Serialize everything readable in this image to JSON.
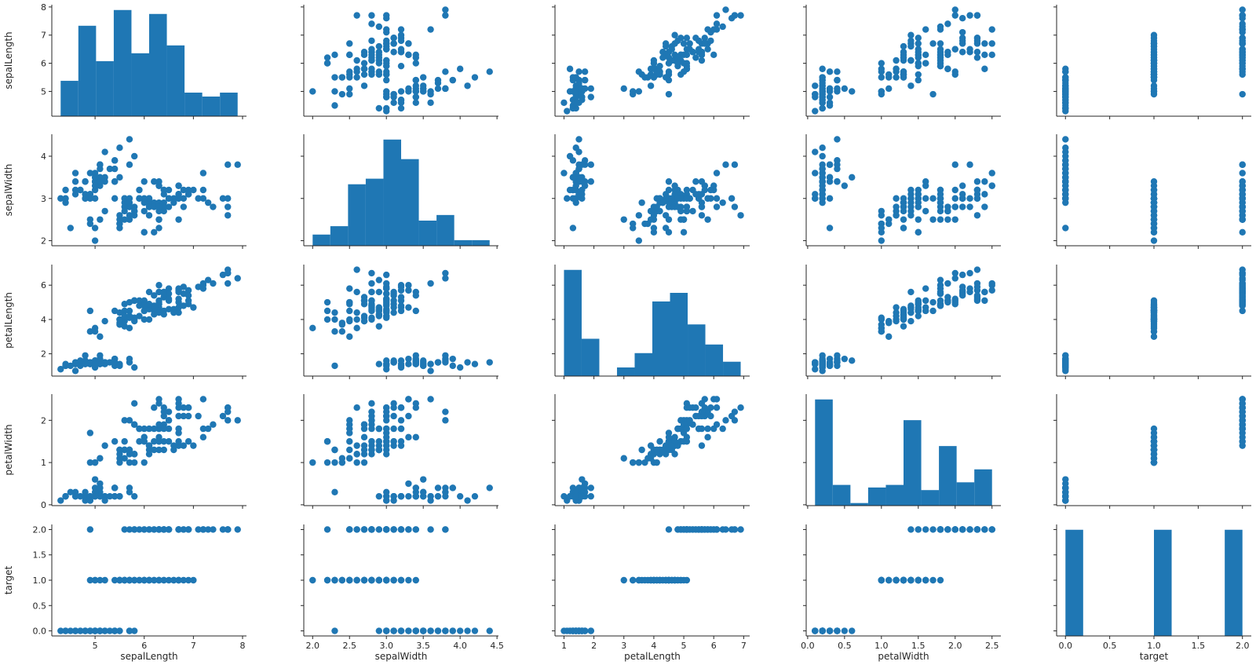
{
  "figure": {
    "variables": [
      "sepalLength",
      "sepalWidth",
      "petalLength",
      "petalWidth",
      "target"
    ],
    "mark_color": "#1f77b4",
    "axis_color": "#262626"
  },
  "chart_data": {
    "type": "scatter",
    "layout": "pair-grid",
    "diagonal": "histogram",
    "off_diagonal": "scatter",
    "title": "",
    "grid": false,
    "legend": "none",
    "axes": {
      "sepalLength": {
        "label": "sepalLength",
        "lim": [
          4.12,
          8.08
        ],
        "ticks": [
          5,
          6,
          7,
          8
        ],
        "tick_labels": [
          "5",
          "6",
          "7",
          "8"
        ]
      },
      "sepalWidth": {
        "label": "sepalWidth",
        "lim": [
          1.88,
          4.52
        ],
        "ticks": [
          2.0,
          2.5,
          3.0,
          3.5,
          4.0,
          4.5
        ],
        "tick_labels": [
          "2.0",
          "2.5",
          "3.0",
          "3.5",
          "4.0",
          "4.5"
        ],
        "row_ticks": [
          2,
          3,
          4
        ],
        "row_tick_labels": [
          "2",
          "3",
          "4"
        ]
      },
      "petalLength": {
        "label": "petalLength",
        "lim": [
          0.7,
          7.2
        ],
        "ticks": [
          1,
          2,
          3,
          4,
          5,
          6,
          7
        ],
        "tick_labels": [
          "1",
          "2",
          "3",
          "4",
          "5",
          "6",
          "7"
        ],
        "row_ticks": [
          2,
          4,
          6
        ],
        "row_tick_labels": [
          "2",
          "4",
          "6"
        ]
      },
      "petalWidth": {
        "label": "petalWidth",
        "lim": [
          -0.02,
          2.62
        ],
        "ticks": [
          0.0,
          0.5,
          1.0,
          1.5,
          2.0,
          2.5
        ],
        "tick_labels": [
          "0.0",
          "0.5",
          "1.0",
          "1.5",
          "2.0",
          "2.5"
        ],
        "row_ticks": [
          0,
          1,
          2
        ],
        "row_tick_labels": [
          "0",
          "1",
          "2"
        ]
      },
      "target": {
        "label": "target",
        "lim": [
          -0.1,
          2.1
        ],
        "ticks": [
          0.0,
          0.5,
          1.0,
          1.5,
          2.0
        ],
        "tick_labels": [
          "0.0",
          "0.5",
          "1.0",
          "1.5",
          "2.0"
        ]
      }
    },
    "histograms": {
      "sepalLength": {
        "edges": [
          4.3,
          4.66,
          5.02,
          5.38,
          5.74,
          6.1,
          6.46,
          6.82,
          7.18,
          7.54,
          7.9
        ],
        "counts": [
          9,
          23,
          14,
          27,
          16,
          26,
          18,
          6,
          5,
          6
        ]
      },
      "sepalWidth": {
        "edges": [
          2.0,
          2.24,
          2.48,
          2.72,
          2.96,
          3.2,
          3.44,
          3.68,
          3.92,
          4.16,
          4.4
        ],
        "counts": [
          4,
          7,
          22,
          24,
          38,
          31,
          9,
          11,
          2,
          2
        ]
      },
      "petalLength": {
        "edges": [
          1.0,
          1.59,
          2.18,
          2.77,
          3.36,
          3.95,
          4.54,
          5.13,
          5.72,
          6.31,
          6.9
        ],
        "counts": [
          37,
          13,
          0,
          3,
          8,
          26,
          29,
          18,
          11,
          5
        ]
      },
      "petalWidth": {
        "edges": [
          0.1,
          0.34,
          0.58,
          0.82,
          1.06,
          1.3,
          1.54,
          1.78,
          2.02,
          2.26,
          2.5
        ],
        "counts": [
          41,
          8,
          1,
          7,
          8,
          33,
          6,
          23,
          9,
          14
        ]
      },
      "target": {
        "edges": [
          0.0,
          0.2,
          0.4,
          0.6,
          0.8,
          1.0,
          1.2,
          1.4,
          1.6,
          1.8,
          2.0
        ],
        "counts": [
          50,
          0,
          0,
          0,
          0,
          50,
          0,
          0,
          0,
          50
        ]
      }
    },
    "points": {
      "sepalLength": [
        5.1,
        4.9,
        4.7,
        4.6,
        5.0,
        5.4,
        4.6,
        5.0,
        4.4,
        4.9,
        5.4,
        4.8,
        4.8,
        4.3,
        5.8,
        5.7,
        5.4,
        5.1,
        5.7,
        5.1,
        5.4,
        5.1,
        4.6,
        5.1,
        4.8,
        5.0,
        5.0,
        5.2,
        5.2,
        4.7,
        4.8,
        5.4,
        5.2,
        5.5,
        4.9,
        5.0,
        5.5,
        4.9,
        4.4,
        5.1,
        5.0,
        4.5,
        4.4,
        5.0,
        5.1,
        4.8,
        5.1,
        4.6,
        5.3,
        5.0,
        7.0,
        6.4,
        6.9,
        5.5,
        6.5,
        5.7,
        6.3,
        4.9,
        6.6,
        5.2,
        5.0,
        5.9,
        6.0,
        6.1,
        5.6,
        6.7,
        5.6,
        5.8,
        6.2,
        5.6,
        5.9,
        6.1,
        6.3,
        6.1,
        6.4,
        6.6,
        6.8,
        6.7,
        6.0,
        5.7,
        5.5,
        5.5,
        5.8,
        6.0,
        5.4,
        6.0,
        6.7,
        6.3,
        5.6,
        5.5,
        5.5,
        6.1,
        5.8,
        5.0,
        5.6,
        5.7,
        5.7,
        6.2,
        5.1,
        5.7,
        6.3,
        5.8,
        7.1,
        6.3,
        6.5,
        7.6,
        4.9,
        7.3,
        6.7,
        7.2,
        6.5,
        6.4,
        6.8,
        5.7,
        5.8,
        6.4,
        6.5,
        7.7,
        7.7,
        6.0,
        6.9,
        5.6,
        7.7,
        6.3,
        6.7,
        7.2,
        6.2,
        6.1,
        6.4,
        7.2,
        7.4,
        7.9,
        6.4,
        6.3,
        6.1,
        7.7,
        6.3,
        6.4,
        6.0,
        6.9,
        6.7,
        6.9,
        5.8,
        6.8,
        6.7,
        6.7,
        6.3,
        6.5,
        6.2,
        5.9
      ],
      "sepalWidth": [
        3.5,
        3.0,
        3.2,
        3.1,
        3.6,
        3.9,
        3.4,
        3.4,
        2.9,
        3.1,
        3.7,
        3.4,
        3.0,
        3.0,
        4.0,
        4.4,
        3.9,
        3.5,
        3.8,
        3.8,
        3.4,
        3.7,
        3.6,
        3.3,
        3.4,
        3.0,
        3.4,
        3.5,
        3.4,
        3.2,
        3.1,
        3.4,
        4.1,
        4.2,
        3.1,
        3.2,
        3.5,
        3.6,
        3.0,
        3.4,
        3.5,
        2.3,
        3.2,
        3.5,
        3.8,
        3.0,
        3.8,
        3.2,
        3.7,
        3.3,
        3.2,
        3.2,
        3.1,
        2.3,
        2.8,
        2.8,
        3.3,
        2.4,
        2.9,
        2.7,
        2.0,
        3.0,
        2.2,
        2.9,
        2.9,
        3.1,
        3.0,
        2.7,
        2.2,
        2.5,
        3.2,
        2.8,
        2.5,
        2.8,
        2.9,
        3.0,
        2.8,
        3.0,
        2.9,
        2.6,
        2.4,
        2.4,
        2.7,
        2.7,
        3.0,
        3.4,
        3.1,
        2.3,
        3.0,
        2.5,
        2.6,
        3.0,
        2.6,
        2.3,
        2.7,
        3.0,
        2.9,
        2.9,
        2.5,
        2.8,
        3.3,
        2.7,
        3.0,
        2.9,
        3.0,
        3.0,
        2.5,
        2.9,
        2.5,
        3.6,
        3.2,
        2.7,
        3.0,
        2.5,
        2.8,
        3.2,
        3.0,
        3.8,
        2.6,
        2.2,
        3.2,
        2.8,
        2.8,
        2.7,
        3.3,
        3.2,
        2.8,
        3.0,
        2.8,
        3.0,
        2.8,
        3.8,
        2.8,
        2.8,
        2.6,
        3.0,
        3.4,
        3.1,
        3.0,
        3.1,
        3.1,
        3.1,
        2.7,
        3.2,
        3.3,
        3.0,
        2.5,
        3.0,
        3.4,
        3.0
      ],
      "petalLength": [
        1.4,
        1.4,
        1.3,
        1.5,
        1.4,
        1.7,
        1.4,
        1.5,
        1.4,
        1.5,
        1.5,
        1.6,
        1.4,
        1.1,
        1.2,
        1.5,
        1.3,
        1.4,
        1.7,
        1.5,
        1.7,
        1.5,
        1.0,
        1.7,
        1.9,
        1.6,
        1.6,
        1.5,
        1.4,
        1.6,
        1.6,
        1.5,
        1.5,
        1.4,
        1.5,
        1.2,
        1.3,
        1.4,
        1.3,
        1.5,
        1.3,
        1.3,
        1.3,
        1.6,
        1.9,
        1.4,
        1.6,
        1.4,
        1.5,
        1.4,
        4.7,
        4.5,
        4.9,
        4.0,
        4.6,
        4.5,
        4.7,
        3.3,
        4.6,
        3.9,
        3.5,
        4.2,
        4.0,
        4.7,
        3.6,
        4.4,
        4.5,
        4.1,
        4.5,
        3.9,
        4.8,
        4.0,
        4.9,
        4.7,
        4.3,
        4.4,
        4.8,
        5.0,
        4.5,
        3.5,
        3.8,
        3.7,
        3.9,
        5.1,
        4.5,
        4.5,
        4.7,
        4.4,
        4.1,
        4.0,
        4.4,
        4.6,
        4.0,
        3.3,
        4.2,
        4.2,
        4.2,
        4.3,
        3.0,
        4.1,
        6.0,
        5.1,
        5.9,
        5.6,
        5.8,
        6.6,
        4.5,
        6.3,
        5.8,
        6.1,
        5.1,
        5.3,
        5.5,
        5.0,
        5.1,
        5.3,
        5.5,
        6.7,
        6.9,
        5.0,
        5.7,
        4.9,
        6.7,
        4.9,
        5.7,
        6.0,
        4.8,
        4.9,
        5.6,
        5.8,
        6.1,
        6.4,
        5.6,
        5.1,
        5.6,
        6.1,
        5.6,
        5.5,
        4.8,
        5.4,
        5.6,
        5.1,
        5.1,
        5.9,
        5.7,
        5.2,
        5.0,
        5.2,
        5.4,
        5.1
      ],
      "petalWidth": [
        0.2,
        0.2,
        0.2,
        0.2,
        0.2,
        0.4,
        0.3,
        0.2,
        0.2,
        0.1,
        0.2,
        0.2,
        0.1,
        0.1,
        0.2,
        0.4,
        0.4,
        0.3,
        0.3,
        0.3,
        0.2,
        0.4,
        0.2,
        0.5,
        0.2,
        0.2,
        0.4,
        0.2,
        0.2,
        0.2,
        0.2,
        0.4,
        0.1,
        0.2,
        0.2,
        0.2,
        0.2,
        0.1,
        0.2,
        0.2,
        0.3,
        0.3,
        0.2,
        0.6,
        0.4,
        0.3,
        0.2,
        0.2,
        0.2,
        0.2,
        1.4,
        1.5,
        1.5,
        1.3,
        1.5,
        1.3,
        1.6,
        1.0,
        1.3,
        1.4,
        1.0,
        1.5,
        1.0,
        1.4,
        1.3,
        1.4,
        1.5,
        1.0,
        1.5,
        1.1,
        1.8,
        1.3,
        1.5,
        1.2,
        1.3,
        1.4,
        1.4,
        1.7,
        1.5,
        1.0,
        1.1,
        1.0,
        1.2,
        1.6,
        1.5,
        1.6,
        1.5,
        1.3,
        1.3,
        1.3,
        1.2,
        1.4,
        1.2,
        1.0,
        1.3,
        1.2,
        1.3,
        1.3,
        1.1,
        1.3,
        2.5,
        1.9,
        2.1,
        1.8,
        2.2,
        2.1,
        1.7,
        1.8,
        1.8,
        2.5,
        2.0,
        1.9,
        2.1,
        2.0,
        2.4,
        2.3,
        1.8,
        2.2,
        2.3,
        1.5,
        2.3,
        2.0,
        2.0,
        1.8,
        2.1,
        1.8,
        1.8,
        1.8,
        2.1,
        1.6,
        1.9,
        2.0,
        2.2,
        1.5,
        1.4,
        2.3,
        2.4,
        1.8,
        1.8,
        2.1,
        2.4,
        2.3,
        1.9,
        2.3,
        2.5,
        2.3,
        1.9,
        2.0,
        2.3,
        1.8
      ],
      "target": [
        0,
        0,
        0,
        0,
        0,
        0,
        0,
        0,
        0,
        0,
        0,
        0,
        0,
        0,
        0,
        0,
        0,
        0,
        0,
        0,
        0,
        0,
        0,
        0,
        0,
        0,
        0,
        0,
        0,
        0,
        0,
        0,
        0,
        0,
        0,
        0,
        0,
        0,
        0,
        0,
        0,
        0,
        0,
        0,
        0,
        0,
        0,
        0,
        0,
        0,
        1,
        1,
        1,
        1,
        1,
        1,
        1,
        1,
        1,
        1,
        1,
        1,
        1,
        1,
        1,
        1,
        1,
        1,
        1,
        1,
        1,
        1,
        1,
        1,
        1,
        1,
        1,
        1,
        1,
        1,
        1,
        1,
        1,
        1,
        1,
        1,
        1,
        1,
        1,
        1,
        1,
        1,
        1,
        1,
        1,
        1,
        1,
        1,
        1,
        1,
        2,
        2,
        2,
        2,
        2,
        2,
        2,
        2,
        2,
        2,
        2,
        2,
        2,
        2,
        2,
        2,
        2,
        2,
        2,
        2,
        2,
        2,
        2,
        2,
        2,
        2,
        2,
        2,
        2,
        2,
        2,
        2,
        2,
        2,
        2,
        2,
        2,
        2,
        2,
        2,
        2,
        2,
        2,
        2,
        2,
        2,
        2,
        2,
        2,
        2
      ]
    }
  }
}
